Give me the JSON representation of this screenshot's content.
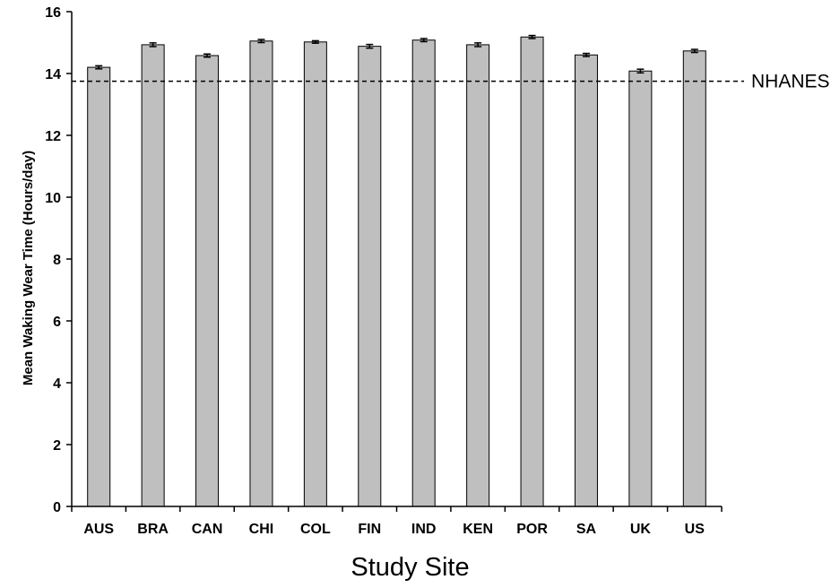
{
  "chart_data": {
    "type": "bar",
    "title": "",
    "xlabel": "Study Site",
    "ylabel": "Mean Waking Wear Time (Hours/day)",
    "categories": [
      "AUS",
      "BRA",
      "CAN",
      "CHI",
      "COL",
      "FIN",
      "IND",
      "KEN",
      "POR",
      "SA",
      "UK",
      "US"
    ],
    "values": [
      14.2,
      14.93,
      14.58,
      15.05,
      15.02,
      14.88,
      15.08,
      14.93,
      15.18,
      14.6,
      14.08,
      14.73
    ],
    "errors": [
      0.05,
      0.06,
      0.05,
      0.05,
      0.04,
      0.06,
      0.05,
      0.06,
      0.05,
      0.05,
      0.06,
      0.05
    ],
    "ylim": [
      0,
      16
    ],
    "yticks": [
      0,
      2,
      4,
      6,
      8,
      10,
      12,
      14,
      16
    ],
    "reference_line": {
      "label": "NHANES",
      "value": 13.75,
      "style": "dashed"
    },
    "grid": false,
    "legend": "none",
    "colors": {
      "bar_fill": "#bfbfbf",
      "bar_stroke": "#000000",
      "axis": "#000000"
    }
  }
}
